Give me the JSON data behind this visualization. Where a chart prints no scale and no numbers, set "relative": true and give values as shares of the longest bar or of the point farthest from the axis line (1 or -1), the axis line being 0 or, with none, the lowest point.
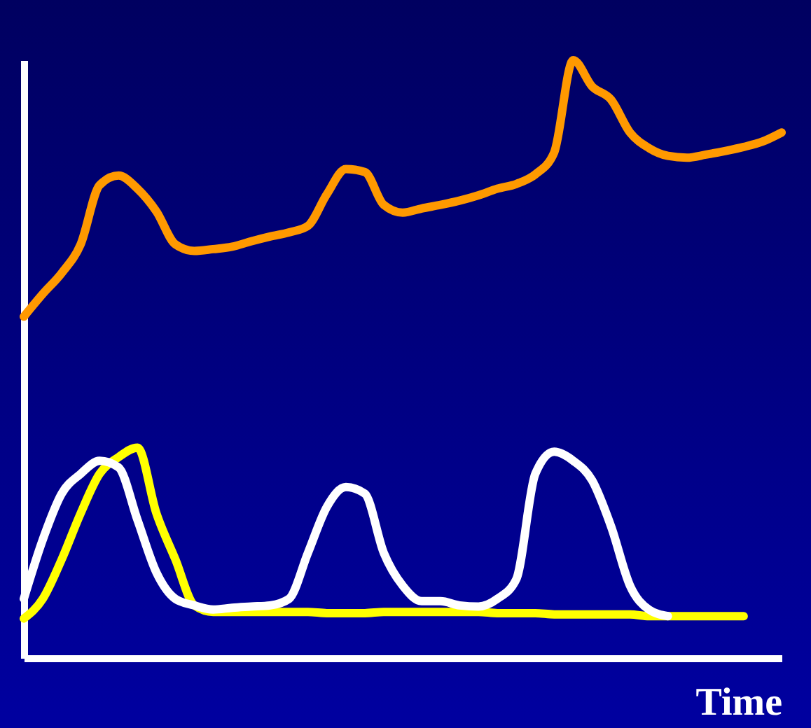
{
  "chart_data": {
    "type": "line",
    "relative": true,
    "xlabel": "Time",
    "categories": [
      null,
      null,
      null,
      null,
      null,
      null,
      null,
      null,
      null,
      null,
      null,
      null,
      null,
      null,
      null,
      null,
      null,
      null,
      null,
      null,
      null,
      null,
      null,
      null,
      null,
      null,
      null,
      null,
      null,
      null,
      null,
      null,
      null,
      null,
      null,
      null,
      null,
      null,
      null,
      null,
      null
    ],
    "series": [
      {
        "color": "#ff9900",
        "values": [
          0.571,
          0.609,
          0.644,
          0.692,
          0.791,
          0.807,
          0.785,
          0.747,
          0.692,
          0.681,
          0.684,
          0.688,
          0.697,
          0.705,
          0.712,
          0.723,
          0.776,
          0.818,
          0.813,
          0.758,
          0.745,
          0.752,
          0.758,
          0.765,
          0.774,
          0.785,
          0.793,
          0.809,
          0.846,
          1.0,
          0.956,
          0.934,
          0.879,
          0.853,
          0.84,
          0.837,
          0.842,
          0.848,
          0.855,
          0.864,
          0.879
        ]
      },
      {
        "color": "#ffff00",
        "values": [
          0.066,
          0.099,
          0.165,
          0.242,
          0.308,
          0.336,
          0.352,
          0.242,
          0.165,
          0.088,
          0.077,
          0.077,
          0.077,
          0.077,
          0.077,
          0.077,
          0.075,
          0.075,
          0.075,
          0.077,
          0.077,
          0.077,
          0.077,
          0.077,
          0.077,
          0.075,
          0.075,
          0.075,
          0.073,
          0.073,
          0.073,
          0.073,
          0.073,
          0.07,
          0.07,
          0.07,
          0.07,
          0.07,
          0.07,
          null,
          null
        ]
      },
      {
        "color": "#ffffff",
        "values": [
          0.099,
          0.198,
          0.275,
          0.308,
          0.33,
          0.319,
          0.231,
          0.143,
          0.099,
          0.088,
          0.081,
          0.084,
          0.086,
          0.088,
          0.099,
          0.176,
          0.253,
          0.286,
          0.275,
          0.176,
          0.121,
          0.095,
          0.095,
          0.088,
          0.086,
          0.099,
          0.132,
          0.308,
          0.345,
          0.33,
          0.297,
          0.22,
          0.121,
          0.081,
          0.07,
          null,
          null,
          null,
          null,
          null,
          null
        ]
      }
    ]
  }
}
